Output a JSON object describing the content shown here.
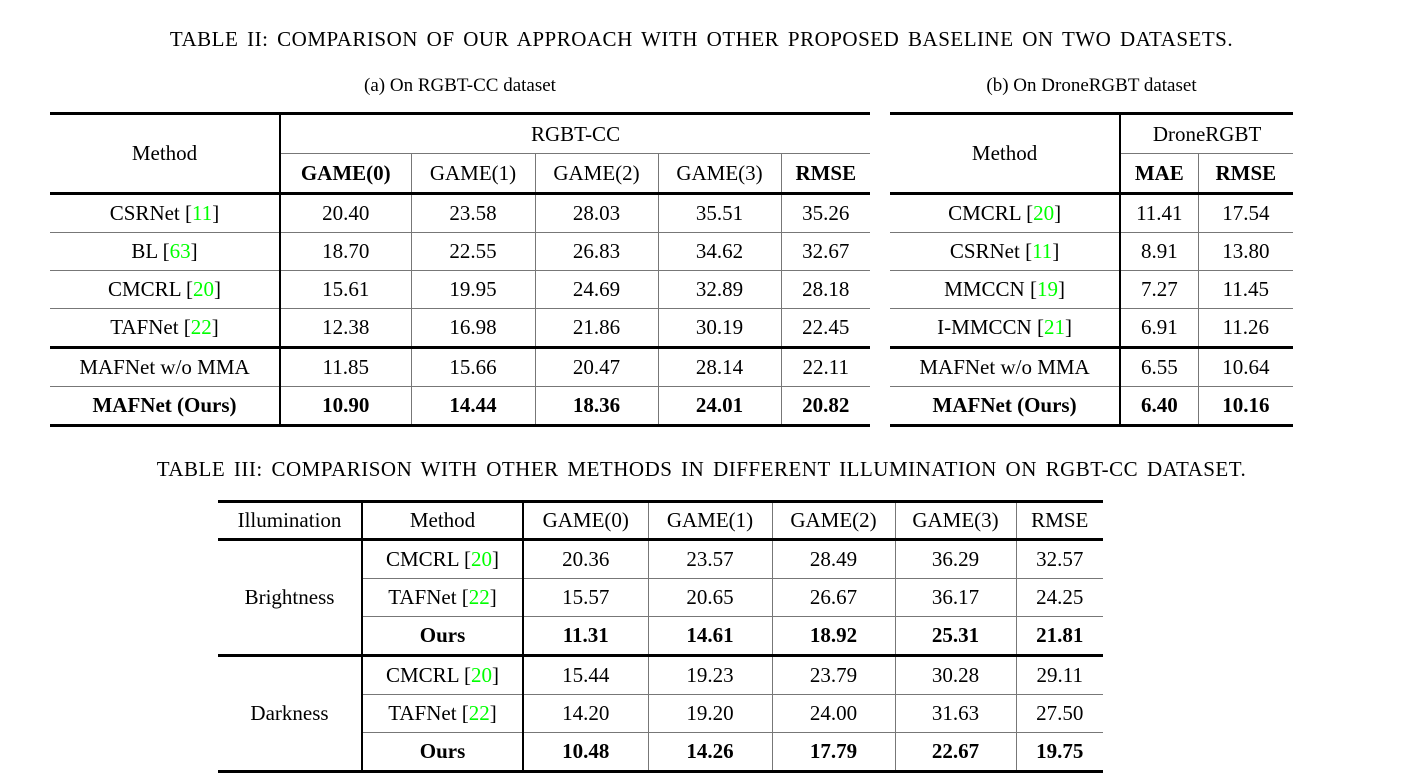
{
  "colors": {
    "citation": "#00ff00"
  },
  "table2": {
    "caption": "TABLE II: COMPARISON OF OUR APPROACH WITH OTHER PROPOSED BASELINE ON TWO DATASETS.",
    "panels": [
      {
        "subcaption": "(a) On RGBT-CC dataset",
        "method_header": "Method",
        "dataset_header": "RGBT-CC",
        "columns": [
          {
            "label": "GAME(0)",
            "bold": true
          },
          {
            "label": "GAME(1)",
            "bold": false
          },
          {
            "label": "GAME(2)",
            "bold": false
          },
          {
            "label": "GAME(3)",
            "bold": false
          },
          {
            "label": "RMSE",
            "bold": true
          }
        ],
        "rows": [
          {
            "method": "CSRNet",
            "cite": "11",
            "values": [
              "20.40",
              "23.58",
              "28.03",
              "35.51",
              "35.26"
            ],
            "bold": false,
            "thick_top": false
          },
          {
            "method": "BL",
            "cite": "63",
            "values": [
              "18.70",
              "22.55",
              "26.83",
              "34.62",
              "32.67"
            ],
            "bold": false,
            "thick_top": false
          },
          {
            "method": "CMCRL",
            "cite": "20",
            "values": [
              "15.61",
              "19.95",
              "24.69",
              "32.89",
              "28.18"
            ],
            "bold": false,
            "thick_top": false
          },
          {
            "method": "TAFNet",
            "cite": "22",
            "values": [
              "12.38",
              "16.98",
              "21.86",
              "30.19",
              "22.45"
            ],
            "bold": false,
            "thick_top": false
          },
          {
            "method": "MAFNet w/o MMA",
            "cite": null,
            "values": [
              "11.85",
              "15.66",
              "20.47",
              "28.14",
              "22.11"
            ],
            "bold": false,
            "thick_top": true
          },
          {
            "method": "MAFNet (Ours)",
            "cite": null,
            "values": [
              "10.90",
              "14.44",
              "18.36",
              "24.01",
              "20.82"
            ],
            "bold": true,
            "thick_top": false
          }
        ]
      },
      {
        "subcaption": "(b) On DroneRGBT dataset",
        "method_header": "Method",
        "dataset_header": "DroneRGBT",
        "columns": [
          {
            "label": "MAE",
            "bold": true
          },
          {
            "label": "RMSE",
            "bold": true
          }
        ],
        "rows": [
          {
            "method": "CMCRL",
            "cite": "20",
            "values": [
              "11.41",
              "17.54"
            ],
            "bold": false,
            "thick_top": false
          },
          {
            "method": "CSRNet",
            "cite": "11",
            "values": [
              "8.91",
              "13.80"
            ],
            "bold": false,
            "thick_top": false
          },
          {
            "method": "MMCCN",
            "cite": "19",
            "values": [
              "7.27",
              "11.45"
            ],
            "bold": false,
            "thick_top": false
          },
          {
            "method": "I-MMCCN",
            "cite": "21",
            "values": [
              "6.91",
              "11.26"
            ],
            "bold": false,
            "thick_top": false
          },
          {
            "method": "MAFNet w/o MMA",
            "cite": null,
            "values": [
              "6.55",
              "10.64"
            ],
            "bold": false,
            "thick_top": true
          },
          {
            "method": "MAFNet (Ours)",
            "cite": null,
            "values": [
              "6.40",
              "10.16"
            ],
            "bold": true,
            "thick_top": false
          }
        ]
      }
    ]
  },
  "table3": {
    "caption": "TABLE III: COMPARISON WITH OTHER METHODS IN DIFFERENT ILLUMINATION ON RGBT-CC DATASET.",
    "headers": [
      "Illumination",
      "Method",
      "GAME(0)",
      "GAME(1)",
      "GAME(2)",
      "GAME(3)",
      "RMSE"
    ],
    "groups": [
      {
        "illumination": "Brightness",
        "rows": [
          {
            "method": "CMCRL",
            "cite": "20",
            "values": [
              "20.36",
              "23.57",
              "28.49",
              "36.29",
              "32.57"
            ],
            "bold": false
          },
          {
            "method": "TAFNet",
            "cite": "22",
            "values": [
              "15.57",
              "20.65",
              "26.67",
              "36.17",
              "24.25"
            ],
            "bold": false
          },
          {
            "method": "Ours",
            "cite": null,
            "values": [
              "11.31",
              "14.61",
              "18.92",
              "25.31",
              "21.81"
            ],
            "bold": true
          }
        ]
      },
      {
        "illumination": "Darkness",
        "rows": [
          {
            "method": "CMCRL",
            "cite": "20",
            "values": [
              "15.44",
              "19.23",
              "23.79",
              "30.28",
              "29.11"
            ],
            "bold": false
          },
          {
            "method": "TAFNet",
            "cite": "22",
            "values": [
              "14.20",
              "19.20",
              "24.00",
              "31.63",
              "27.50"
            ],
            "bold": false
          },
          {
            "method": "Ours",
            "cite": null,
            "values": [
              "10.48",
              "14.26",
              "17.79",
              "22.67",
              "19.75"
            ],
            "bold": true
          }
        ]
      }
    ]
  }
}
